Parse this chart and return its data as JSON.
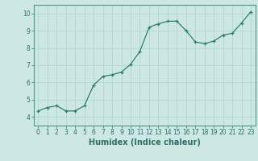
{
  "x": [
    0,
    1,
    2,
    3,
    4,
    5,
    6,
    7,
    8,
    9,
    10,
    11,
    12,
    13,
    14,
    15,
    16,
    17,
    18,
    19,
    20,
    21,
    22,
    23
  ],
  "y": [
    4.35,
    4.55,
    4.65,
    4.35,
    4.35,
    4.65,
    5.85,
    6.35,
    6.45,
    6.6,
    7.05,
    7.8,
    9.2,
    9.4,
    9.55,
    9.55,
    9.0,
    8.35,
    8.25,
    8.4,
    8.75,
    8.85,
    9.45,
    10.1
  ],
  "line_color": "#2e7d72",
  "marker": "+",
  "marker_size": 3,
  "bg_color": "#cde8e4",
  "grid_color": "#b0d8d2",
  "xlabel": "Humidex (Indice chaleur)",
  "xlim": [
    -0.5,
    23.5
  ],
  "ylim": [
    3.5,
    10.5
  ],
  "yticks": [
    4,
    5,
    6,
    7,
    8,
    9,
    10
  ],
  "xticks": [
    0,
    1,
    2,
    3,
    4,
    5,
    6,
    7,
    8,
    9,
    10,
    11,
    12,
    13,
    14,
    15,
    16,
    17,
    18,
    19,
    20,
    21,
    22,
    23
  ],
  "tick_color": "#2e6e68",
  "tick_fontsize": 5.5,
  "xlabel_fontsize": 7,
  "spine_color": "#4a9990",
  "linewidth": 0.9
}
